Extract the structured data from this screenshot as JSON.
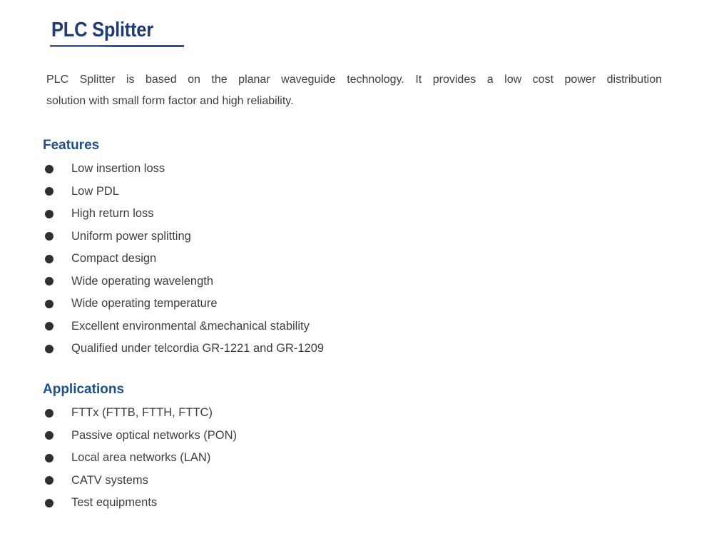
{
  "colors": {
    "title_blue": "#203c72",
    "heading_blue": "#1f4e8f",
    "underline_blue": "#2e5288",
    "text_gray": "#3e3e3e",
    "bullet_dark": "#2f2f2f"
  },
  "document": {
    "title": "PLC Splitter",
    "intro": {
      "line1": "PLC Splitter is based on the planar waveguide technology. It provides a low cost power distribution",
      "line2": "solution with small form factor and high reliability."
    },
    "features": {
      "heading": "Features",
      "items": [
        "Low insertion loss",
        "Low PDL",
        "High return loss",
        "Uniform power splitting",
        "Compact design",
        "Wide operating wavelength",
        "Wide operating temperature",
        "Excellent environmental &mechanical stability",
        "Qualified under telcordia GR-1221 and GR-1209"
      ]
    },
    "applications": {
      "heading": "Applications",
      "items": [
        "FTTx (FTTB, FTTH, FTTC)",
        "Passive optical networks (PON)",
        "Local area networks (LAN)",
        "CATV systems",
        "Test equipments"
      ]
    }
  }
}
